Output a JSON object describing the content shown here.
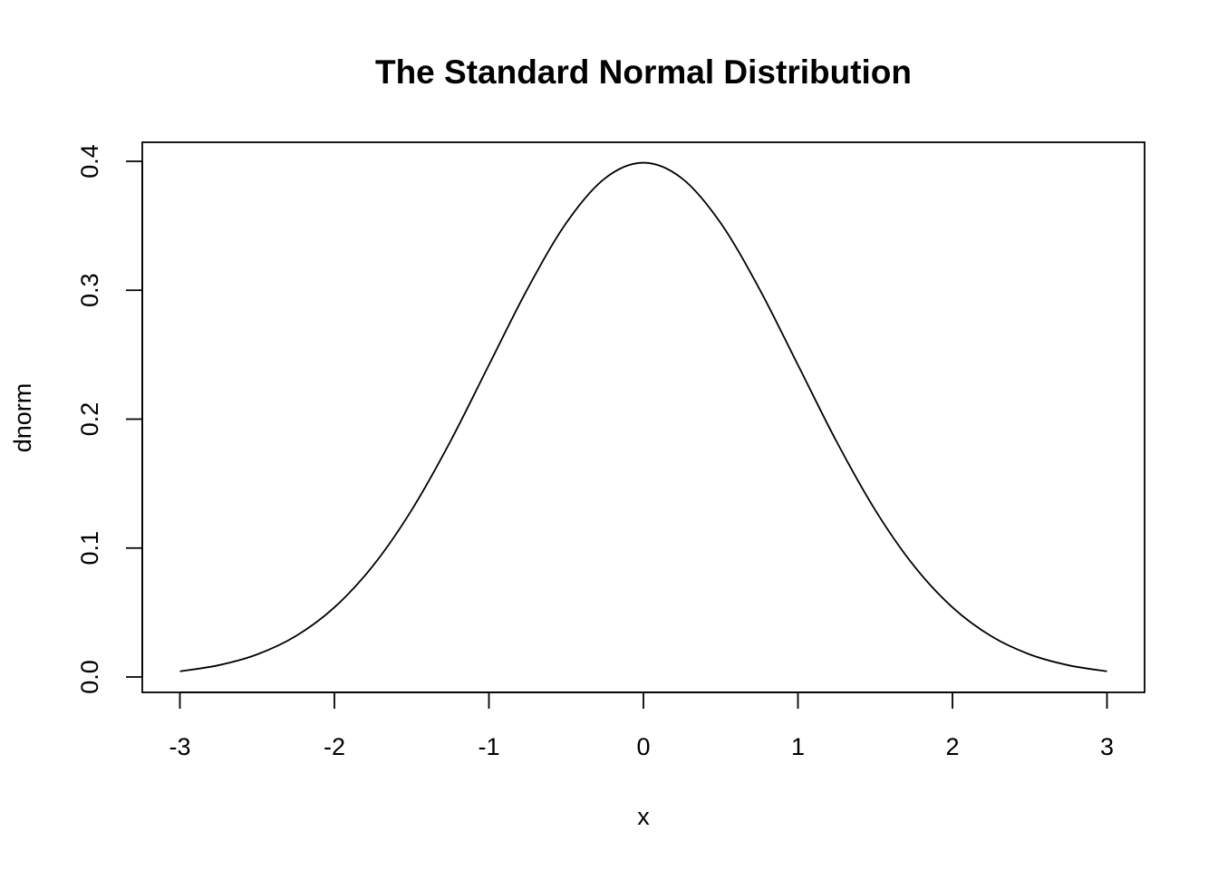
{
  "chart_data": {
    "type": "line",
    "title": "The Standard Normal Distribution",
    "xlabel": "x",
    "ylabel": "dnorm",
    "xlim": [
      -3,
      3
    ],
    "ylim": [
      0,
      0.4
    ],
    "x_ticks": [
      "-3",
      "-2",
      "-1",
      "0",
      "1",
      "2",
      "3"
    ],
    "y_ticks": [
      "0.0",
      "0.1",
      "0.2",
      "0.3",
      "0.4"
    ],
    "grid": false,
    "series": [
      {
        "x": [
          -3.0,
          -2.75,
          -2.5,
          -2.25,
          -2.0,
          -1.75,
          -1.5,
          -1.25,
          -1.0,
          -0.75,
          -0.5,
          -0.25,
          0.0,
          0.25,
          0.5,
          0.75,
          1.0,
          1.25,
          1.5,
          1.75,
          2.0,
          2.25,
          2.5,
          2.75,
          3.0
        ],
        "y": [
          0.0044,
          0.0091,
          0.0175,
          0.0317,
          0.054,
          0.0863,
          0.1295,
          0.1826,
          0.242,
          0.3011,
          0.3521,
          0.3867,
          0.3989,
          0.3867,
          0.3521,
          0.3011,
          0.242,
          0.1826,
          0.1295,
          0.0863,
          0.054,
          0.0317,
          0.0175,
          0.0091,
          0.0044
        ]
      }
    ],
    "colors": {
      "line": "#000000",
      "background": "#ffffff"
    }
  }
}
